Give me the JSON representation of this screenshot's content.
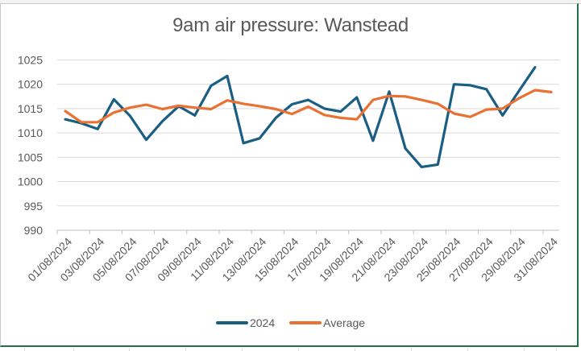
{
  "chart_data": {
    "type": "line",
    "title": "9am air pressure: Wanstead",
    "xlabel": "",
    "ylabel": "",
    "ylim": [
      990,
      1025
    ],
    "yticks": [
      990,
      995,
      1000,
      1005,
      1010,
      1015,
      1020,
      1025
    ],
    "grid": true,
    "legend_position": "bottom",
    "x": [
      "01/08/2024",
      "02/08/2024",
      "03/08/2024",
      "04/08/2024",
      "05/08/2024",
      "06/08/2024",
      "07/08/2024",
      "08/08/2024",
      "09/08/2024",
      "10/08/2024",
      "11/08/2024",
      "12/08/2024",
      "13/08/2024",
      "14/08/2024",
      "15/08/2024",
      "16/08/2024",
      "17/08/2024",
      "18/08/2024",
      "19/08/2024",
      "20/08/2024",
      "21/08/2024",
      "22/08/2024",
      "23/08/2024",
      "24/08/2024",
      "25/08/2024",
      "26/08/2024",
      "27/08/2024",
      "28/08/2024",
      "29/08/2024",
      "30/08/2024",
      "31/08/2024"
    ],
    "xtick_labels": [
      "01/08/2024",
      "03/08/2024",
      "05/08/2024",
      "07/08/2024",
      "09/08/2024",
      "11/08/2024",
      "13/08/2024",
      "15/08/2024",
      "17/08/2024",
      "19/08/2024",
      "21/08/2024",
      "23/08/2024",
      "25/08/2024",
      "27/08/2024",
      "29/08/2024",
      "31/08/2024"
    ],
    "series": [
      {
        "name": "2024",
        "color": "#1b5e84",
        "values": [
          1012.8,
          1012.0,
          1010.8,
          1016.9,
          1013.5,
          1008.6,
          1012.4,
          1015.5,
          1013.6,
          1019.7,
          1021.7,
          1007.9,
          1008.9,
          1013.1,
          1015.9,
          1016.8,
          1015.0,
          1014.4,
          1017.3,
          1008.4,
          1018.5,
          1006.8,
          1003.0,
          1003.5,
          1020.0,
          1019.8,
          1019.0,
          1013.6,
          1018.6,
          1023.5,
          null
        ]
      },
      {
        "name": "Average",
        "color": "#e97132",
        "values": [
          1014.5,
          1012.2,
          1012.2,
          1014.2,
          1015.2,
          1015.8,
          1014.9,
          1015.6,
          1015.2,
          1014.9,
          1016.7,
          1016.0,
          1015.5,
          1014.9,
          1013.9,
          1015.4,
          1013.7,
          1013.1,
          1012.8,
          1016.8,
          1017.6,
          1017.5,
          1016.8,
          1016.0,
          1014.0,
          1013.3,
          1014.8,
          1015.0,
          1017.1,
          1018.8,
          1018.4
        ]
      }
    ]
  }
}
